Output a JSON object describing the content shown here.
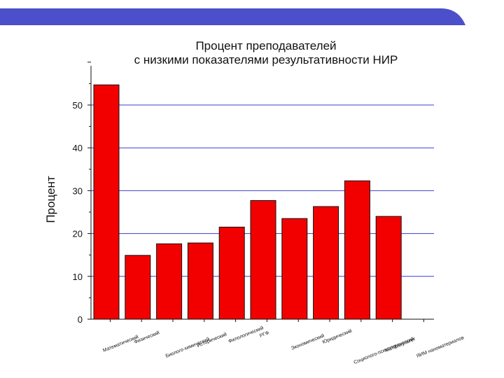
{
  "colors": {
    "banner": "#4b4fc9",
    "bar": "#f20000",
    "bar_edge": "#111111",
    "grid": "#3a3fd0",
    "axis": "#111111",
    "text": "#111111"
  },
  "chart_data": {
    "type": "bar",
    "title_line1": "Процент преподавателей",
    "title_line2": "с низкими показателями результативности НИР",
    "ylabel": "Процент",
    "xlabel": "",
    "ylim": [
      0,
      60
    ],
    "yticks": [
      0,
      10,
      20,
      30,
      40,
      50
    ],
    "grid": "horizontal",
    "legend": "none",
    "categories": [
      "Математический",
      "Физический",
      "Биолого-химический",
      "Исторический",
      "Филологический",
      "РГФ",
      "Экономический",
      "Юридический",
      "Социолого-психологический",
      "Матфакультет",
      "ЯИМ наноматериалов"
    ],
    "values": [
      54.7,
      14.9,
      17.6,
      17.8,
      21.5,
      27.7,
      23.5,
      26.3,
      32.3,
      24.0,
      null
    ]
  }
}
